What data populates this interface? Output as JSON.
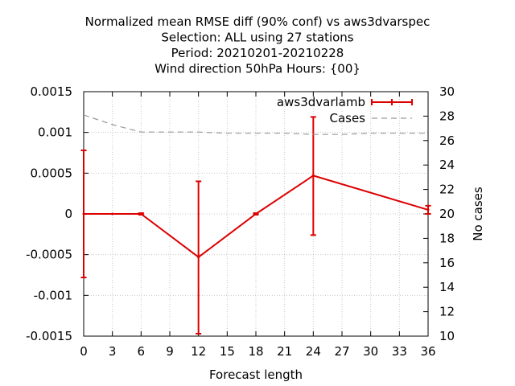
{
  "chart_data": {
    "type": "line",
    "title_lines": [
      "Normalized mean RMSE diff (90% conf) vs aws3dvarspec",
      "Selection: ALL using    27 stations",
      "Period: 20210201-20210228",
      "Wind direction 50hPa   Hours: {00}"
    ],
    "xlabel": "Forecast length",
    "ylabel": "",
    "y2label": "No cases",
    "xlim": [
      0,
      36
    ],
    "ylim": [
      -0.0015,
      0.0015
    ],
    "y2lim": [
      10,
      30
    ],
    "x_ticks": [
      "0",
      "3",
      "6",
      "9",
      "12",
      "15",
      "18",
      "21",
      "24",
      "27",
      "30",
      "33",
      "36"
    ],
    "y_ticks": [
      "0.0015",
      "0.001",
      "0.0005",
      "0",
      "-0.0005",
      "-0.001",
      "-0.0015"
    ],
    "y2_ticks": [
      "30",
      "28",
      "26",
      "24",
      "22",
      "20",
      "18",
      "16",
      "14",
      "12",
      "10"
    ],
    "grid": true,
    "legend_position": "top-right",
    "series": [
      {
        "name": "aws3dvarlamb",
        "color": "#dd0000",
        "axis": "y",
        "x": [
          0,
          3,
          6,
          12,
          18,
          24,
          36
        ],
        "y": [
          0.0,
          0.0,
          0.0,
          -0.00053,
          0.0,
          0.00047,
          5e-05
        ],
        "err_low": [
          -0.00078,
          null,
          -1e-05,
          -0.00147,
          -1e-05,
          -0.00026,
          0.0
        ],
        "err_high": [
          0.00078,
          null,
          1e-05,
          0.0004,
          1e-05,
          0.00119,
          0.0001
        ]
      },
      {
        "name": "Cases",
        "color": "#999999",
        "axis": "y2",
        "x": [
          0,
          3,
          6,
          9,
          12,
          15,
          18,
          21,
          24,
          27,
          30,
          33,
          36
        ],
        "y": [
          28.1,
          27.3,
          26.7,
          26.7,
          26.7,
          26.6,
          26.6,
          26.6,
          26.5,
          26.5,
          26.6,
          26.6,
          26.6
        ]
      }
    ]
  }
}
